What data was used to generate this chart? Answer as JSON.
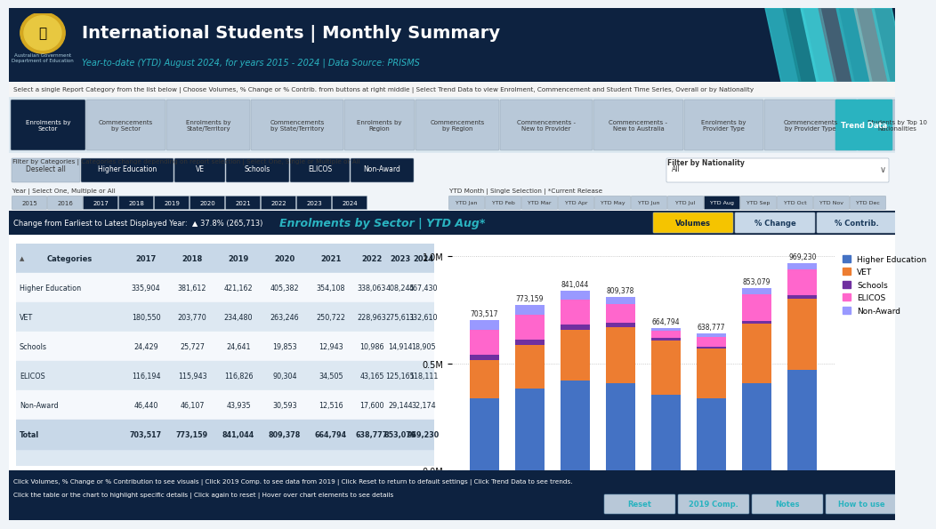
{
  "title": "International Students | Monthly Summary",
  "subtitle": "Year-to-date (YTD) August 2024, for years 2015 - 2024 | Data Source: PRISMS",
  "instruction1": "Select a single Report Category from the list below | Choose Volumes, % Change or % Contrib. from buttons at right middle | Select Trend Data to view Enrolment, Commencement and Student Time Series, Overall or by Nationality",
  "instruction2": "Filter by Categories | Categories change depending on report selection | Select One, Single or Multiple or All",
  "instruction3": "Year | Select One, Multiple or All",
  "ytd_label": "YTD Month | Single Selection | *Current Release",
  "change_label": "Change from Earliest to Latest Displayed Year:  ▲ 37.8% (265,713)",
  "chart_title": "Enrolments by Sector | YTD Aug*",
  "bg_dark": "#0d2240",
  "bg_mid": "#1a3a5c",
  "bg_light": "#dce8f0",
  "teal": "#2ab3c0",
  "teal_btn": "#2ab3c0",
  "yellow": "#f5c400",
  "nav_buttons": [
    "Enrolments by\nSector",
    "Commencements\nby Sector",
    "Enrolments by\nState/Territory",
    "Commencements\nby State/Territory",
    "Enrolments by\nRegion",
    "Commencements\nby Region",
    "Commencements -\nNew to Provider",
    "Commencements -\nNew to Australia",
    "Enrolments by\nProvider Type",
    "Commencements\nby Provider Type",
    "Students by Top 10\nNationalities"
  ],
  "filter_buttons": [
    "Deselect all",
    "Higher Education",
    "VE",
    "Schools",
    "ELICOS",
    "Non-Award"
  ],
  "year_buttons": [
    "2015",
    "2016",
    "2017",
    "2018",
    "2019",
    "2020",
    "2021",
    "2022",
    "2023",
    "2024"
  ],
  "ytd_buttons": [
    "YTD Jan",
    "YTD Feb",
    "YTD Mar",
    "YTD Apr",
    "YTD May",
    "YTD Jun",
    "YTD Jul",
    "YTD Aug",
    "YTD Sep",
    "YTD Oct",
    "YTD Nov",
    "YTD Dec"
  ],
  "action_buttons_right": [
    "Volumes",
    "% Change",
    "% Contrib."
  ],
  "bottom_buttons": [
    "Reset",
    "2019 Comp.",
    "Notes",
    "How to use"
  ],
  "years": [
    "2017",
    "2018",
    "2019",
    "2020",
    "2021",
    "2022",
    "2023",
    "2024"
  ],
  "higher_ed": [
    335904,
    381612,
    421162,
    405382,
    354108,
    338063,
    408245,
    467430
  ],
  "vet": [
    180550,
    203770,
    234480,
    263246,
    250722,
    228963,
    275611,
    332610
  ],
  "schools": [
    24429,
    25727,
    24641,
    19853,
    12943,
    10986,
    14914,
    18905
  ],
  "elicos": [
    116194,
    115943,
    116826,
    90304,
    34505,
    43165,
    125165,
    118111
  ],
  "non_award": [
    46440,
    46107,
    43935,
    30593,
    12516,
    17600,
    29144,
    32174
  ],
  "totals": [
    703517,
    773159,
    841044,
    809378,
    664794,
    638777,
    853079,
    969230
  ],
  "colors": {
    "higher_ed": "#4472c4",
    "vet": "#ed7d31",
    "schools": "#7030a0",
    "elicos": "#ff66cc",
    "non_award": "#9999ff"
  },
  "table_headers": [
    "Categories",
    "2017",
    "2018",
    "2019",
    "2020",
    "2021",
    "2022",
    "2023",
    "2024"
  ],
  "table_rows": [
    [
      "Higher Education",
      "335,904",
      "381,612",
      "421,162",
      "405,382",
      "354,108",
      "338,063",
      "408,245",
      "467,430"
    ],
    [
      "VET",
      "180,550",
      "203,770",
      "234,480",
      "263,246",
      "250,722",
      "228,963",
      "275,611",
      "332,610"
    ],
    [
      "Schools",
      "24,429",
      "25,727",
      "24,641",
      "19,853",
      "12,943",
      "10,986",
      "14,914",
      "18,905"
    ],
    [
      "ELICOS",
      "116,194",
      "115,943",
      "116,826",
      "90,304",
      "34,505",
      "43,165",
      "125,165",
      "118,111"
    ],
    [
      "Non-Award",
      "46,440",
      "46,107",
      "43,935",
      "30,593",
      "12,516",
      "17,600",
      "29,144",
      "32,174"
    ],
    [
      "Total",
      "703,517",
      "773,159",
      "841,044",
      "809,378",
      "664,794",
      "638,777",
      "853,079",
      "969,230"
    ]
  ],
  "filter_nationality": "Filter by Nationality",
  "nationality_value": "All",
  "footer1": "Click Volumes, % Change or % Contribution to see visuals | Click 2019 Comp. to see data from 2019 | Click Reset to return to default settings | Click Trend Data to see trends.",
  "footer2": "Click the table or the chart to highlight specific details | Click again to reset | Hover over chart elements to see details"
}
